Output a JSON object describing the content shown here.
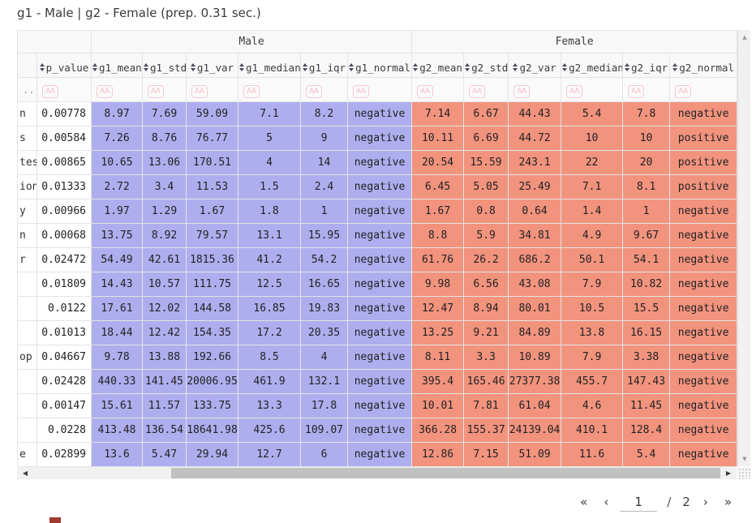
{
  "title": "g1 - Male | g2 - Female (prep. 0.31 sec.)",
  "table": {
    "group_headers": [
      "Male",
      "Female"
    ],
    "column_headers": [
      "p_value",
      "g1_mean",
      "g1_std",
      "g1_var",
      "g1_median",
      "g1_iqr",
      "g1_normal",
      "g2_mean",
      "g2_std",
      "g2_var",
      "g2_median",
      "g2_iqr",
      "g2_normal"
    ],
    "label_filter_text": "...",
    "filter_badge_text": "AA",
    "rows": [
      {
        "label": "n",
        "cells": [
          "0.00778",
          "8.97",
          "7.69",
          "59.09",
          "7.1",
          "8.2",
          "negative",
          "7.14",
          "6.67",
          "44.43",
          "5.4",
          "7.8",
          "negative"
        ]
      },
      {
        "label": "s",
        "cells": [
          "0.00584",
          "7.26",
          "8.76",
          "76.77",
          "5",
          "9",
          "negative",
          "10.11",
          "6.69",
          "44.72",
          "10",
          "10",
          "positive"
        ]
      },
      {
        "label": "tes",
        "cells": [
          "0.00865",
          "10.65",
          "13.06",
          "170.51",
          "4",
          "14",
          "negative",
          "20.54",
          "15.59",
          "243.1",
          "22",
          "20",
          "positive"
        ]
      },
      {
        "label": "ion",
        "cells": [
          "0.01333",
          "2.72",
          "3.4",
          "11.53",
          "1.5",
          "2.4",
          "negative",
          "6.45",
          "5.05",
          "25.49",
          "7.1",
          "8.1",
          "positive"
        ]
      },
      {
        "label": "y",
        "cells": [
          "0.00966",
          "1.97",
          "1.29",
          "1.67",
          "1.8",
          "1",
          "negative",
          "1.67",
          "0.8",
          "0.64",
          "1.4",
          "1",
          "negative"
        ]
      },
      {
        "label": "n",
        "cells": [
          "0.00068",
          "13.75",
          "8.92",
          "79.57",
          "13.1",
          "15.95",
          "negative",
          "8.8",
          "5.9",
          "34.81",
          "4.9",
          "9.67",
          "negative"
        ]
      },
      {
        "label": "r",
        "cells": [
          "0.02472",
          "54.49",
          "42.61",
          "1815.36",
          "41.2",
          "54.2",
          "negative",
          "61.76",
          "26.2",
          "686.2",
          "50.1",
          "54.1",
          "negative"
        ]
      },
      {
        "label": "",
        "cells": [
          "0.01809",
          "14.43",
          "10.57",
          "111.75",
          "12.5",
          "16.65",
          "negative",
          "9.98",
          "6.56",
          "43.08",
          "7.9",
          "10.82",
          "negative"
        ]
      },
      {
        "label": "",
        "cells": [
          "0.0122",
          "17.61",
          "12.02",
          "144.58",
          "16.85",
          "19.83",
          "negative",
          "12.47",
          "8.94",
          "80.01",
          "10.5",
          "15.5",
          "negative"
        ]
      },
      {
        "label": "",
        "cells": [
          "0.01013",
          "18.44",
          "12.42",
          "154.35",
          "17.2",
          "20.35",
          "negative",
          "13.25",
          "9.21",
          "84.89",
          "13.8",
          "16.15",
          "negative"
        ]
      },
      {
        "label": "op",
        "cells": [
          "0.04667",
          "9.78",
          "13.88",
          "192.66",
          "8.5",
          "4",
          "negative",
          "8.11",
          "3.3",
          "10.89",
          "7.9",
          "3.38",
          "negative"
        ]
      },
      {
        "label": "",
        "cells": [
          "0.02428",
          "440.33",
          "141.45",
          "20006.95",
          "461.9",
          "132.1",
          "negative",
          "395.4",
          "165.46",
          "27377.38",
          "455.7",
          "147.43",
          "negative"
        ]
      },
      {
        "label": "",
        "cells": [
          "0.00147",
          "15.61",
          "11.57",
          "133.75",
          "13.3",
          "17.8",
          "negative",
          "10.01",
          "7.81",
          "61.04",
          "4.6",
          "11.45",
          "negative"
        ]
      },
      {
        "label": "",
        "cells": [
          "0.0228",
          "413.48",
          "136.54",
          "18641.98",
          "425.6",
          "109.07",
          "negative",
          "366.28",
          "155.37",
          "24139.04",
          "410.1",
          "128.4",
          "negative"
        ]
      },
      {
        "label": "e",
        "cells": [
          "0.02899",
          "13.6",
          "5.47",
          "29.94",
          "12.7",
          "6",
          "negative",
          "12.86",
          "7.15",
          "51.09",
          "11.6",
          "5.4",
          "negative"
        ]
      }
    ]
  },
  "colors": {
    "male_cell": "#aeaeef",
    "female_cell": "#f2937e",
    "filter_badge": "#f29aaa"
  },
  "scrollbar": {
    "up_arrow": "▲",
    "down_arrow": "▼",
    "left_arrow": "◀",
    "right_arrow": "▶"
  },
  "pagination": {
    "first": "«",
    "prev": "‹",
    "page_value": "1",
    "separator": "/",
    "total_pages": "2",
    "next": "›",
    "last": "»"
  }
}
